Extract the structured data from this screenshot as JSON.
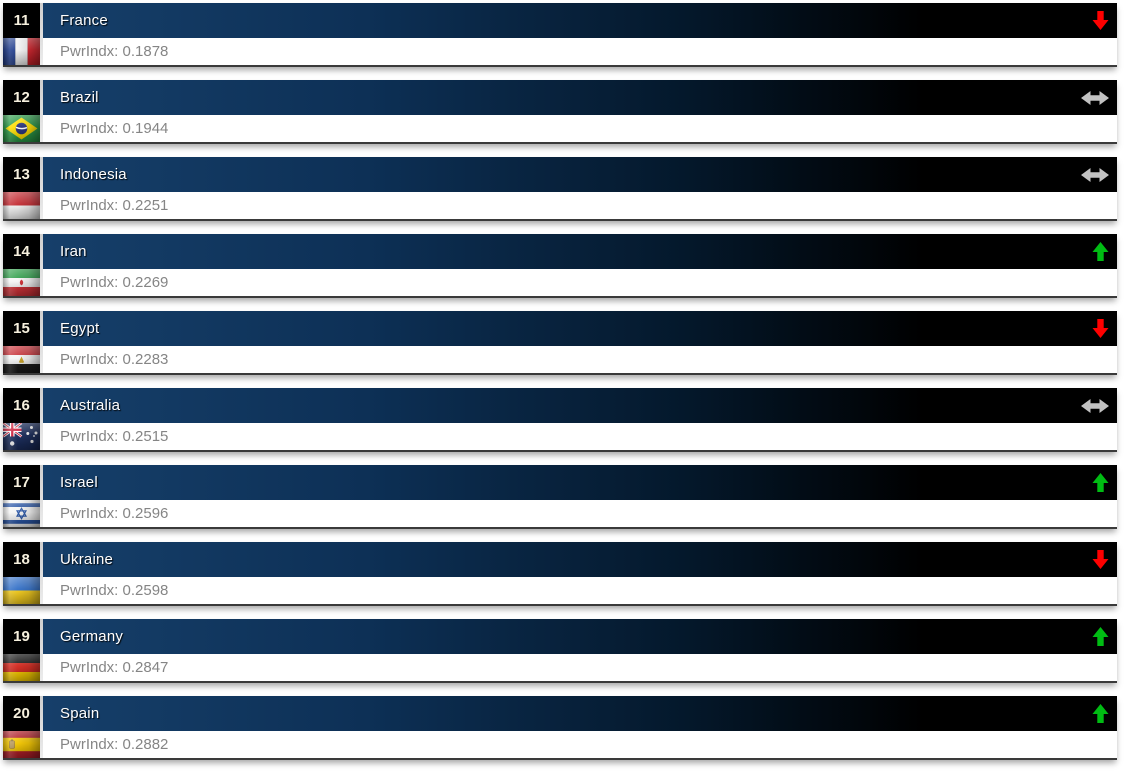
{
  "page": {
    "background": "#ffffff"
  },
  "ranking_list": {
    "value_prefix": "PwrIndx",
    "rows": [
      {
        "rank": "11",
        "country": "France",
        "pwrindx": "0.1878",
        "pwrindx_text": "PwrIndx: 0.1878",
        "trend": "down",
        "trend_icon": "trend-down-icon",
        "flag_icon": "france-flag"
      },
      {
        "rank": "12",
        "country": "Brazil",
        "pwrindx": "0.1944",
        "pwrindx_text": "PwrIndx: 0.1944",
        "trend": "same",
        "trend_icon": "trend-same-icon",
        "flag_icon": "brazil-flag"
      },
      {
        "rank": "13",
        "country": "Indonesia",
        "pwrindx": "0.2251",
        "pwrindx_text": "PwrIndx: 0.2251",
        "trend": "same",
        "trend_icon": "trend-same-icon",
        "flag_icon": "indonesia-flag"
      },
      {
        "rank": "14",
        "country": "Iran",
        "pwrindx": "0.2269",
        "pwrindx_text": "PwrIndx: 0.2269",
        "trend": "up",
        "trend_icon": "trend-up-icon",
        "flag_icon": "iran-flag"
      },
      {
        "rank": "15",
        "country": "Egypt",
        "pwrindx": "0.2283",
        "pwrindx_text": "PwrIndx: 0.2283",
        "trend": "down",
        "trend_icon": "trend-down-icon",
        "flag_icon": "egypt-flag"
      },
      {
        "rank": "16",
        "country": "Australia",
        "pwrindx": "0.2515",
        "pwrindx_text": "PwrIndx: 0.2515",
        "trend": "same",
        "trend_icon": "trend-same-icon",
        "flag_icon": "australia-flag"
      },
      {
        "rank": "17",
        "country": "Israel",
        "pwrindx": "0.2596",
        "pwrindx_text": "PwrIndx: 0.2596",
        "trend": "up",
        "trend_icon": "trend-up-icon",
        "flag_icon": "israel-flag"
      },
      {
        "rank": "18",
        "country": "Ukraine",
        "pwrindx": "0.2598",
        "pwrindx_text": "PwrIndx: 0.2598",
        "trend": "down",
        "trend_icon": "trend-down-icon",
        "flag_icon": "ukraine-flag"
      },
      {
        "rank": "19",
        "country": "Germany",
        "pwrindx": "0.2847",
        "pwrindx_text": "PwrIndx: 0.2847",
        "trend": "up",
        "trend_icon": "trend-up-icon",
        "flag_icon": "germany-flag"
      },
      {
        "rank": "20",
        "country": "Spain",
        "pwrindx": "0.2882",
        "pwrindx_text": "PwrIndx: 0.2882",
        "trend": "up",
        "trend_icon": "trend-up-icon",
        "flag_icon": "spain-flag"
      }
    ]
  },
  "colors": {
    "title_gradient_start": "#163f6a",
    "title_gradient_end": "#000000",
    "rank_box": "#000000",
    "rank_text": "#f6f0de",
    "country_text": "#ffffff",
    "value_text": "#858585",
    "trend_up": "#00bc13",
    "trend_down": "#ff0000",
    "trend_same": "#c2c2c2"
  }
}
